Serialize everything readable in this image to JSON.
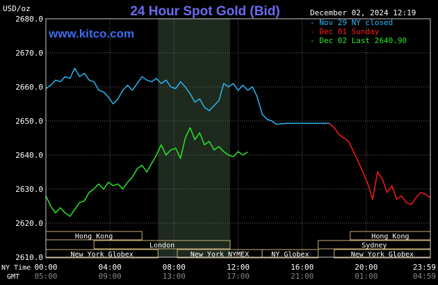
{
  "header": {
    "unit": "USD/oz",
    "title": "24 Hour Spot Gold (Bid)",
    "timestamp": "December 02, 2024 12:19",
    "watermark": "www.kitco.com"
  },
  "legend": [
    {
      "label": "Nov 29 NY closed",
      "color": "#29b6f6"
    },
    {
      "label": "Dec 01 Sunday",
      "color": "#ff1a1a"
    },
    {
      "label": "Dec 02 Last 2640.90",
      "color": "#29e629"
    }
  ],
  "time_rows": {
    "ny_label": "NY Time",
    "gmt_label": "GMT",
    "ny_ticks": [
      "00:00",
      "04:00",
      "08:00",
      "12:00",
      "16:00",
      "20:00",
      "23:59"
    ],
    "gmt_ticks": [
      "05:00",
      "09:00",
      "13:00",
      "17:00",
      "21:00",
      "01:00",
      "04:59"
    ]
  },
  "sessions": [
    {
      "label": "Hong Kong",
      "start": 0.0,
      "end": 6.0,
      "row": 0
    },
    {
      "label": "Hong Kong",
      "start": 19.0,
      "end": 24.0,
      "row": 0
    },
    {
      "label": "London",
      "start": 3.0,
      "end": 11.5,
      "row": 1
    },
    {
      "label": "Sydney",
      "start": 17.0,
      "end": 24.0,
      "row": 1
    },
    {
      "label": "New York Globex",
      "start": 0.0,
      "end": 7.0,
      "row": 2
    },
    {
      "label": "New York NYMEX",
      "start": 8.2,
      "end": 13.5,
      "row": 2
    },
    {
      "label": "NY Globex",
      "start": 13.5,
      "end": 17.0,
      "row": 2
    },
    {
      "label": "New York Globex",
      "start": 18.0,
      "end": 24.0,
      "row": 2
    }
  ],
  "chart_data": {
    "type": "line",
    "title": "24 Hour Spot Gold (Bid)",
    "ylabel": "USD/oz",
    "ylim": [
      2610,
      2680
    ],
    "yticks": [
      2610,
      2620,
      2630,
      2640,
      2650,
      2660,
      2670,
      2680
    ],
    "xlim": [
      0,
      24
    ],
    "x_unit": "hours NY time",
    "highlight_band": [
      7,
      11.5
    ],
    "series": [
      {
        "name": "Nov 29 NY closed",
        "color": "#29b6f6",
        "x": [
          0.0,
          0.3,
          0.6,
          0.9,
          1.2,
          1.5,
          1.8,
          2.1,
          2.4,
          2.7,
          3.0,
          3.3,
          3.6,
          3.9,
          4.2,
          4.5,
          4.8,
          5.1,
          5.4,
          5.7,
          6.0,
          6.3,
          6.6,
          6.9,
          7.2,
          7.5,
          7.8,
          8.1,
          8.4,
          8.7,
          9.0,
          9.3,
          9.6,
          9.9,
          10.2,
          10.5,
          10.8,
          11.1,
          11.4,
          11.7,
          12.0,
          12.3,
          12.6,
          12.9,
          13.2,
          13.5,
          13.8,
          14.1,
          14.4,
          15.0,
          16.0,
          17.0,
          17.3,
          17.7
        ],
        "y": [
          2659.5,
          2660.5,
          2662.0,
          2661.5,
          2663.0,
          2662.5,
          2665.5,
          2663.0,
          2664.0,
          2662.0,
          2661.5,
          2659.0,
          2658.5,
          2657.0,
          2655.0,
          2656.5,
          2659.0,
          2660.5,
          2659.0,
          2661.0,
          2663.0,
          2662.0,
          2661.5,
          2662.5,
          2661.0,
          2662.0,
          2660.0,
          2659.5,
          2661.5,
          2660.0,
          2658.0,
          2655.5,
          2656.5,
          2654.0,
          2653.0,
          2654.5,
          2656.0,
          2661.0,
          2660.0,
          2661.0,
          2659.0,
          2660.5,
          2659.0,
          2660.0,
          2657.0,
          2652.0,
          2650.5,
          2650.0,
          2649.0,
          2649.3,
          2649.3,
          2649.3,
          2649.3,
          2649.3
        ]
      },
      {
        "name": "Dec 01 Sunday",
        "color": "#ff1a1a",
        "x": [
          17.7,
          18.0,
          18.3,
          18.6,
          18.9,
          19.2,
          19.5,
          19.8,
          20.1,
          20.4,
          20.7,
          21.0,
          21.3,
          21.6,
          21.9,
          22.2,
          22.5,
          22.8,
          23.1,
          23.4,
          23.7,
          23.99
        ],
        "y": [
          2649.3,
          2648.0,
          2646.0,
          2645.0,
          2644.0,
          2641.0,
          2638.0,
          2635.0,
          2631.5,
          2627.0,
          2635.0,
          2633.0,
          2629.0,
          2631.0,
          2627.0,
          2628.0,
          2626.0,
          2625.5,
          2627.5,
          2629.0,
          2628.5,
          2627.5
        ]
      },
      {
        "name": "Dec 02 Last 2640.90",
        "color": "#29e629",
        "x": [
          0.0,
          0.3,
          0.6,
          0.9,
          1.2,
          1.5,
          1.8,
          2.1,
          2.4,
          2.7,
          3.0,
          3.3,
          3.6,
          3.9,
          4.2,
          4.5,
          4.8,
          5.1,
          5.4,
          5.7,
          6.0,
          6.3,
          6.6,
          6.9,
          7.2,
          7.5,
          7.8,
          8.1,
          8.4,
          8.7,
          9.0,
          9.3,
          9.6,
          9.9,
          10.2,
          10.5,
          10.8,
          11.1,
          11.4,
          11.7,
          12.0,
          12.3,
          12.6
        ],
        "y": [
          2628.0,
          2625.0,
          2623.0,
          2624.5,
          2623.0,
          2622.0,
          2624.0,
          2626.0,
          2626.5,
          2629.0,
          2630.0,
          2631.5,
          2630.0,
          2632.0,
          2631.0,
          2631.5,
          2630.0,
          2632.0,
          2633.5,
          2636.0,
          2637.0,
          2635.0,
          2637.5,
          2640.0,
          2643.0,
          2640.0,
          2641.5,
          2642.0,
          2639.0,
          2645.0,
          2648.0,
          2644.5,
          2646.5,
          2643.0,
          2644.0,
          2641.5,
          2642.5,
          2641.0,
          2640.0,
          2639.5,
          2641.0,
          2640.0,
          2640.9
        ]
      }
    ]
  }
}
